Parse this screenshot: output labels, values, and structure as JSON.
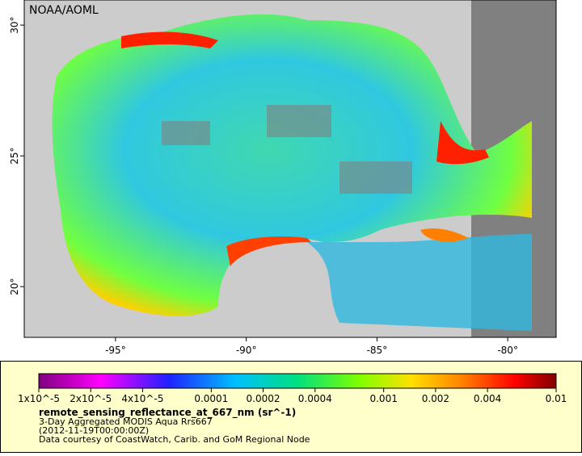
{
  "map": {
    "credit": "NOAA/AOML",
    "lon_range": [
      -98.49,
      -78.15
    ],
    "lat_range": [
      18.06,
      30.96
    ],
    "lon_ticks": [
      {
        "value": -95,
        "label": "-95°"
      },
      {
        "value": -90,
        "label": "-90°"
      },
      {
        "value": -85,
        "label": "-85°"
      },
      {
        "value": -80,
        "label": "-80°"
      }
    ],
    "lat_ticks": [
      {
        "value": 20,
        "label": "20°"
      },
      {
        "value": 25,
        "label": "25°"
      },
      {
        "value": 30,
        "label": "30°"
      }
    ]
  },
  "colorbar": {
    "scale": "log",
    "range": [
      1e-05,
      0.01
    ],
    "ticks": [
      {
        "value": 1e-05,
        "label": "1x10^-5"
      },
      {
        "value": 2e-05,
        "label": "2x10^-5"
      },
      {
        "value": 4e-05,
        "label": "4x10^-5"
      },
      0.0001,
      0.0002,
      0.0004,
      0.001,
      0.002,
      0.004,
      0.01
    ]
  },
  "legend": {
    "variable": "remote_sensing_reflectance_at_667_nm (sr^-1)",
    "lines": [
      "3-Day Aggregated MODIS Aqua Rrs667",
      "(2012-11-19T00:00:00Z)",
      "Data courtesy of CoastWatch, Carib. and GoM Regional Node"
    ]
  }
}
